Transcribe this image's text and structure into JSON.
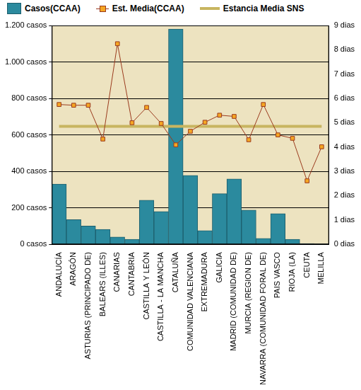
{
  "chart_data": {
    "type": "bar",
    "categories": [
      "ANDALUCÍA",
      "ARAGÓN",
      "ASTURIAS (PRINCIPADO DE)",
      "BALEARS (ILLES)",
      "CANARIAS",
      "CANTABRIA",
      "CASTILLA Y LEÓN",
      "CASTILLA - LA MANCHA",
      "CATALUÑA",
      "COMUNIDAD VALENCIANA",
      "EXTREMADURA",
      "GALICIA",
      "MADRID (COMUNIDAD DE)",
      "MURCIA (REGION DE)",
      "NAVARRA (COMUNIDAD FORAL DE)",
      "PAIS VASCO",
      "RIOJA (LA)",
      "CEUTA",
      "MELILLA"
    ],
    "series": [
      {
        "name": "Casos(CCAA)",
        "type": "bar",
        "color": "#2b8a9e",
        "values": [
          330,
          135,
          100,
          82,
          40,
          28,
          242,
          180,
          1180,
          378,
          75,
          278,
          358,
          188,
          32,
          168,
          28,
          4,
          2
        ]
      },
      {
        "name": "Est. Media(CCAA)",
        "type": "line",
        "axis": "y2",
        "color": "#9b3b1e",
        "marker": "square",
        "values": [
          5.75,
          5.72,
          5.72,
          4.33,
          8.25,
          5.0,
          5.63,
          4.97,
          4.09,
          4.65,
          5.02,
          5.31,
          5.26,
          4.3,
          5.75,
          4.5,
          4.36,
          2.61,
          4.01
        ]
      },
      {
        "name": "Estancia Media SNS",
        "type": "line",
        "axis": "y2",
        "color": "#c8b560",
        "marker": "none",
        "values": [
          4.85,
          4.85,
          4.85,
          4.85,
          4.85,
          4.85,
          4.85,
          4.85,
          4.85,
          4.85,
          4.85,
          4.85,
          4.85,
          4.85,
          4.85,
          4.85,
          4.85,
          4.85,
          4.85
        ]
      }
    ],
    "ylim": [
      0,
      1200
    ],
    "yticks": [
      {
        "value": 0,
        "label": "0 casos"
      },
      {
        "value": 200,
        "label": "200 casos"
      },
      {
        "value": 400,
        "label": "400 casos"
      },
      {
        "value": 600,
        "label": "600 casos"
      },
      {
        "value": 800,
        "label": "800 casos"
      },
      {
        "value": 1000,
        "label": "1.000 casos"
      },
      {
        "value": 1200,
        "label": "1.200 casos"
      }
    ],
    "y2lim": [
      0,
      9
    ],
    "y2ticks": [
      {
        "value": 0,
        "label": "0 dias"
      },
      {
        "value": 1,
        "label": "1 dias"
      },
      {
        "value": 2,
        "label": "2 dias"
      },
      {
        "value": 3,
        "label": "3 dias"
      },
      {
        "value": 4,
        "label": "4 dias"
      },
      {
        "value": 5,
        "label": "5 dias"
      },
      {
        "value": 6,
        "label": "6 dias"
      },
      {
        "value": 7,
        "label": "7 dias"
      },
      {
        "value": 8,
        "label": "8 dias"
      },
      {
        "value": 9,
        "label": "9 dias"
      }
    ],
    "grid": true,
    "legend": "top"
  }
}
